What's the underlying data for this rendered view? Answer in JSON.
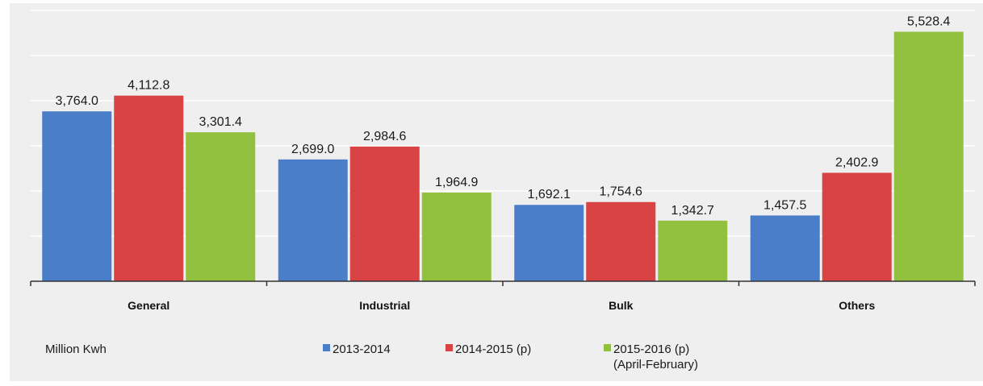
{
  "chart_data": {
    "type": "bar",
    "categories": [
      "General",
      "Industrial",
      "Bulk",
      "Others"
    ],
    "series": [
      {
        "name": "2013-2014",
        "values": [
          3764.0,
          2699.0,
          1692.1,
          1457.5
        ],
        "color": "#4a7ec9"
      },
      {
        "name": "2014-2015 (p)",
        "values": [
          4112.8,
          2984.6,
          1754.6,
          2402.9
        ],
        "color": "#d94343"
      },
      {
        "name": "2015-2016 (p)",
        "name_line2": "(April-February)",
        "values": [
          3301.4,
          1964.9,
          1342.7,
          5528.4
        ],
        "color": "#92c13f"
      }
    ],
    "data_labels": [
      [
        "3,764.0",
        "2,699.0",
        "1,692.1",
        "1,457.5"
      ],
      [
        "4,112.8",
        "2,984.6",
        "1,754.6",
        "2,402.9"
      ],
      [
        "3,301.4",
        "1,964.9",
        "1,342.7",
        "5,528.4"
      ]
    ],
    "unit_label": "Million Kwh",
    "ylim": [
      0,
      6000
    ],
    "grid": true,
    "legend_position": "bottom"
  }
}
